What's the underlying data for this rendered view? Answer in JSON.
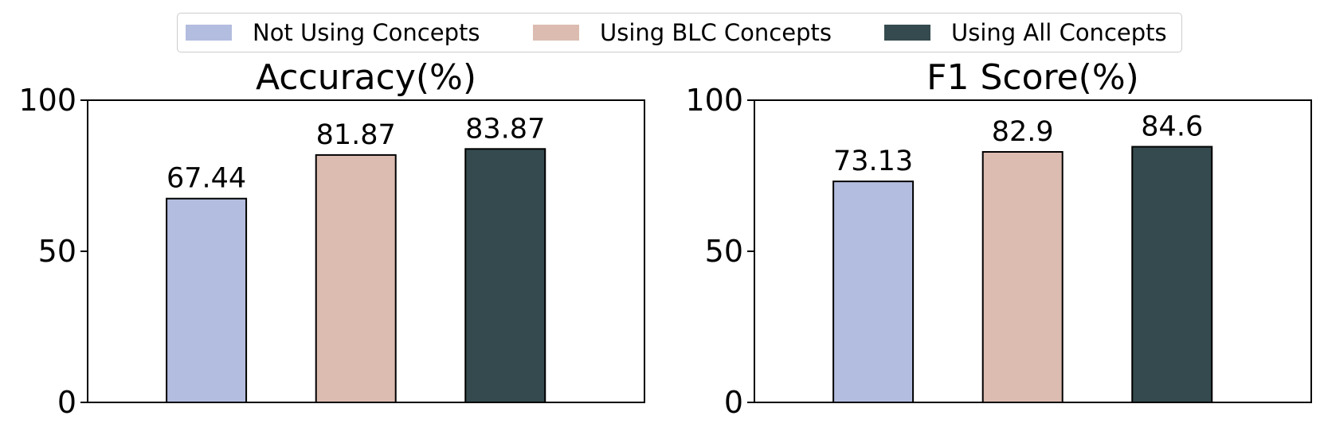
{
  "legend": {
    "items": [
      {
        "label": "Not Using Concepts",
        "color": "#b3bddf"
      },
      {
        "label": "Using BLC Concepts",
        "color": "#dcbcb1"
      },
      {
        "label": "Using All Concepts",
        "color": "#344a4e"
      }
    ],
    "placement": "top-center"
  },
  "chart_data": [
    {
      "type": "bar",
      "title": "Accuracy(%)",
      "categories": [
        "Not Using Concepts",
        "Using BLC Concepts",
        "Using All Concepts"
      ],
      "values": [
        67.44,
        81.87,
        83.87
      ],
      "data_labels": [
        "67.44",
        "81.87",
        "83.87"
      ],
      "colors": [
        "#b3bddf",
        "#dcbcb1",
        "#344a4e"
      ],
      "ylim": [
        0,
        100
      ],
      "yticks": [
        0,
        50,
        100
      ],
      "ytick_labels": [
        "0",
        "50",
        "100"
      ],
      "xlabel": "",
      "ylabel": "",
      "grid": false
    },
    {
      "type": "bar",
      "title": "F1 Score(%)",
      "categories": [
        "Not Using Concepts",
        "Using BLC Concepts",
        "Using All Concepts"
      ],
      "values": [
        73.13,
        82.9,
        84.6
      ],
      "data_labels": [
        "73.13",
        "82.9",
        "84.6"
      ],
      "colors": [
        "#b3bddf",
        "#dcbcb1",
        "#344a4e"
      ],
      "ylim": [
        0,
        100
      ],
      "yticks": [
        0,
        50,
        100
      ],
      "ytick_labels": [
        "0",
        "50",
        "100"
      ],
      "xlabel": "",
      "ylabel": "",
      "grid": false
    }
  ]
}
